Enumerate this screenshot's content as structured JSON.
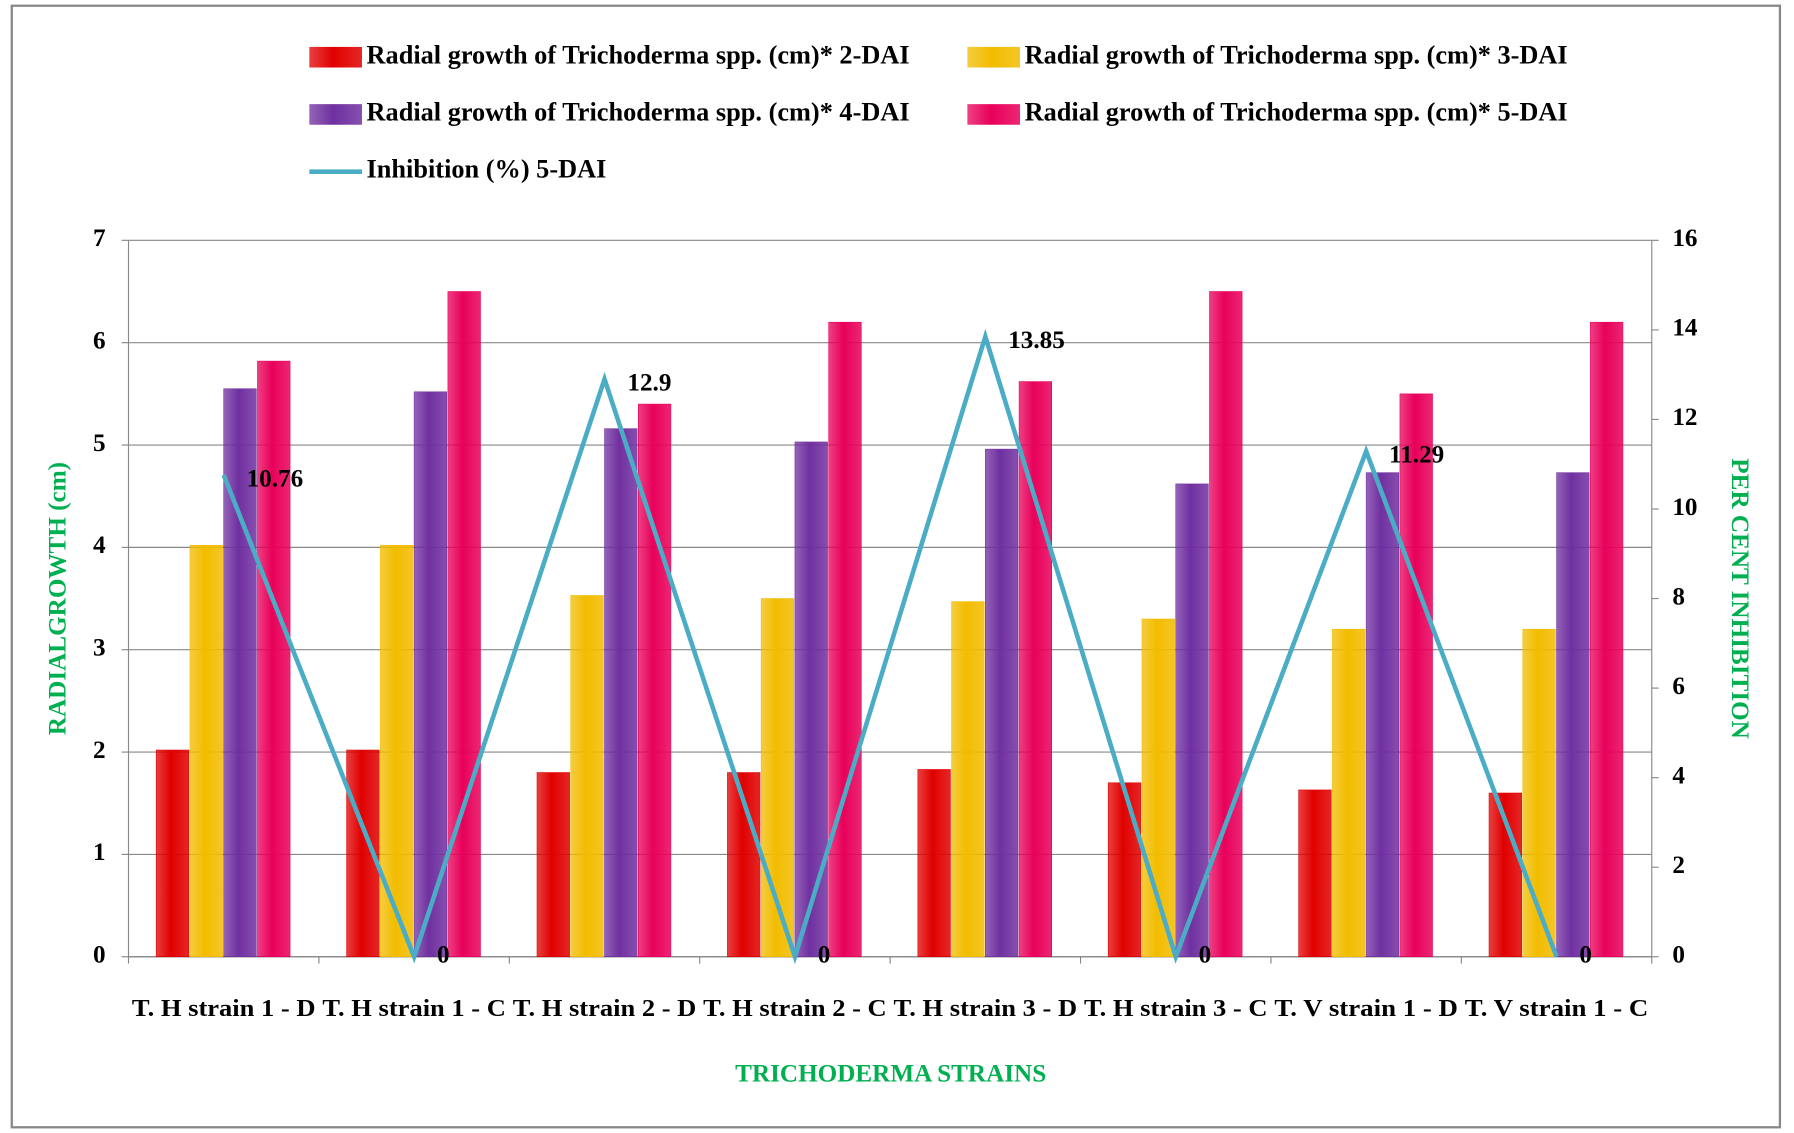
{
  "chart_data": {
    "type": "bar",
    "categories": [
      "T. H strain 1 - D",
      "T. H strain 1 - C",
      "T. H strain 2 - D",
      "T. H strain 2 - C",
      "T. H strain 3 - D",
      "T. H strain 3 - C",
      "T. V strain 1 - D",
      "T. V strain 1 - C"
    ],
    "series": [
      {
        "name": "Radial growth of Trichoderma spp. (cm)* 2-DAI",
        "color": "#e00000",
        "values": [
          2.02,
          2.02,
          1.8,
          1.8,
          1.83,
          1.7,
          1.63,
          1.6
        ]
      },
      {
        "name": "Radial growth of Trichoderma spp. (cm)* 3-DAI",
        "color": "#f2bc00",
        "values": [
          4.02,
          4.02,
          3.53,
          3.5,
          3.47,
          3.3,
          3.2,
          3.2
        ]
      },
      {
        "name": "Radial growth of Trichoderma spp. (cm)* 4-DAI",
        "color": "#7030a0",
        "values": [
          5.55,
          5.52,
          5.16,
          5.03,
          4.96,
          4.62,
          4.73,
          4.73
        ]
      },
      {
        "name": "Radial growth of Trichoderma spp. (cm)* 5-DAI",
        "color": "#e8005a",
        "values": [
          5.82,
          6.5,
          5.4,
          6.2,
          5.62,
          6.5,
          5.5,
          6.2
        ]
      },
      {
        "name": "Inhibition (%) 5-DAI",
        "color": "#4bacc6",
        "type": "line",
        "axis": "y2",
        "values": [
          10.76,
          0,
          12.9,
          0,
          13.85,
          0,
          11.29,
          0
        ]
      }
    ],
    "xlabel": "TRICHODERMA STRAINS",
    "ylabel": "RADIALGROWTH (cm)",
    "y2label": "PER CENT INHIBITION",
    "ylim": [
      0,
      7
    ],
    "yticks": [
      0,
      1,
      2,
      3,
      4,
      5,
      6,
      7
    ],
    "y2lim": [
      0,
      16
    ],
    "y2ticks": [
      0,
      2,
      4,
      6,
      8,
      10,
      12,
      14,
      16
    ],
    "legend": "top"
  }
}
